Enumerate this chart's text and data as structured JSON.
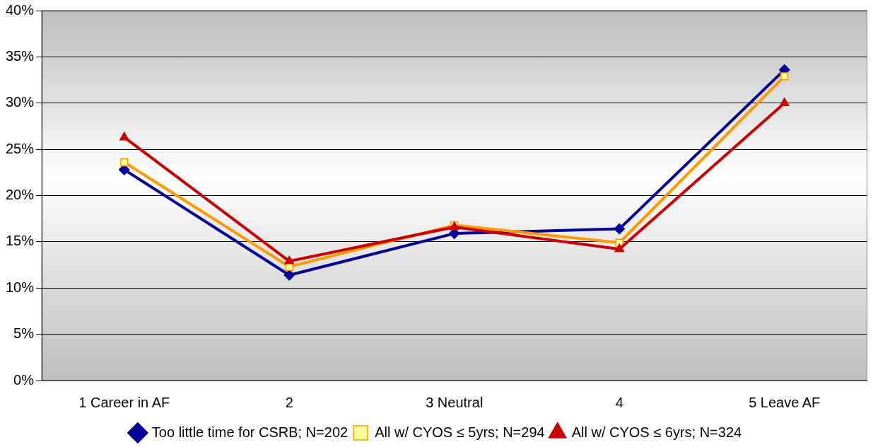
{
  "chart_data": {
    "type": "line",
    "categories": [
      "1 Career in AF",
      "2",
      "3 Neutral",
      "4",
      "5 Leave AF"
    ],
    "series": [
      {
        "name": "Too little time for CSRB; N=202",
        "color": "#000099",
        "marker": "diamond",
        "values": [
          22.8,
          11.4,
          15.9,
          16.4,
          33.6
        ]
      },
      {
        "name": "All w/ CYOS ≤ 5yrs; N=294",
        "color": "#ff9900",
        "marker": "square",
        "values": [
          23.6,
          12.3,
          16.8,
          14.9,
          32.9
        ]
      },
      {
        "name": "All w/ CYOS ≤ 6yrs; N=324",
        "color": "#cc0000",
        "marker": "triangle",
        "values": [
          26.3,
          12.9,
          16.6,
          14.2,
          30.0
        ]
      }
    ],
    "ylim": [
      0,
      40
    ],
    "yticks": [
      {
        "value": 0,
        "label": "0%"
      },
      {
        "value": 5,
        "label": "5%"
      },
      {
        "value": 10,
        "label": "10%"
      },
      {
        "value": 15,
        "label": "15%"
      },
      {
        "value": 20,
        "label": "20%"
      },
      {
        "value": 25,
        "label": "25%"
      },
      {
        "value": 30,
        "label": "30%"
      },
      {
        "value": 35,
        "label": "35%"
      },
      {
        "value": 40,
        "label": "40%"
      }
    ],
    "grid": "y",
    "legend": "bottom",
    "line_style": "solid"
  }
}
